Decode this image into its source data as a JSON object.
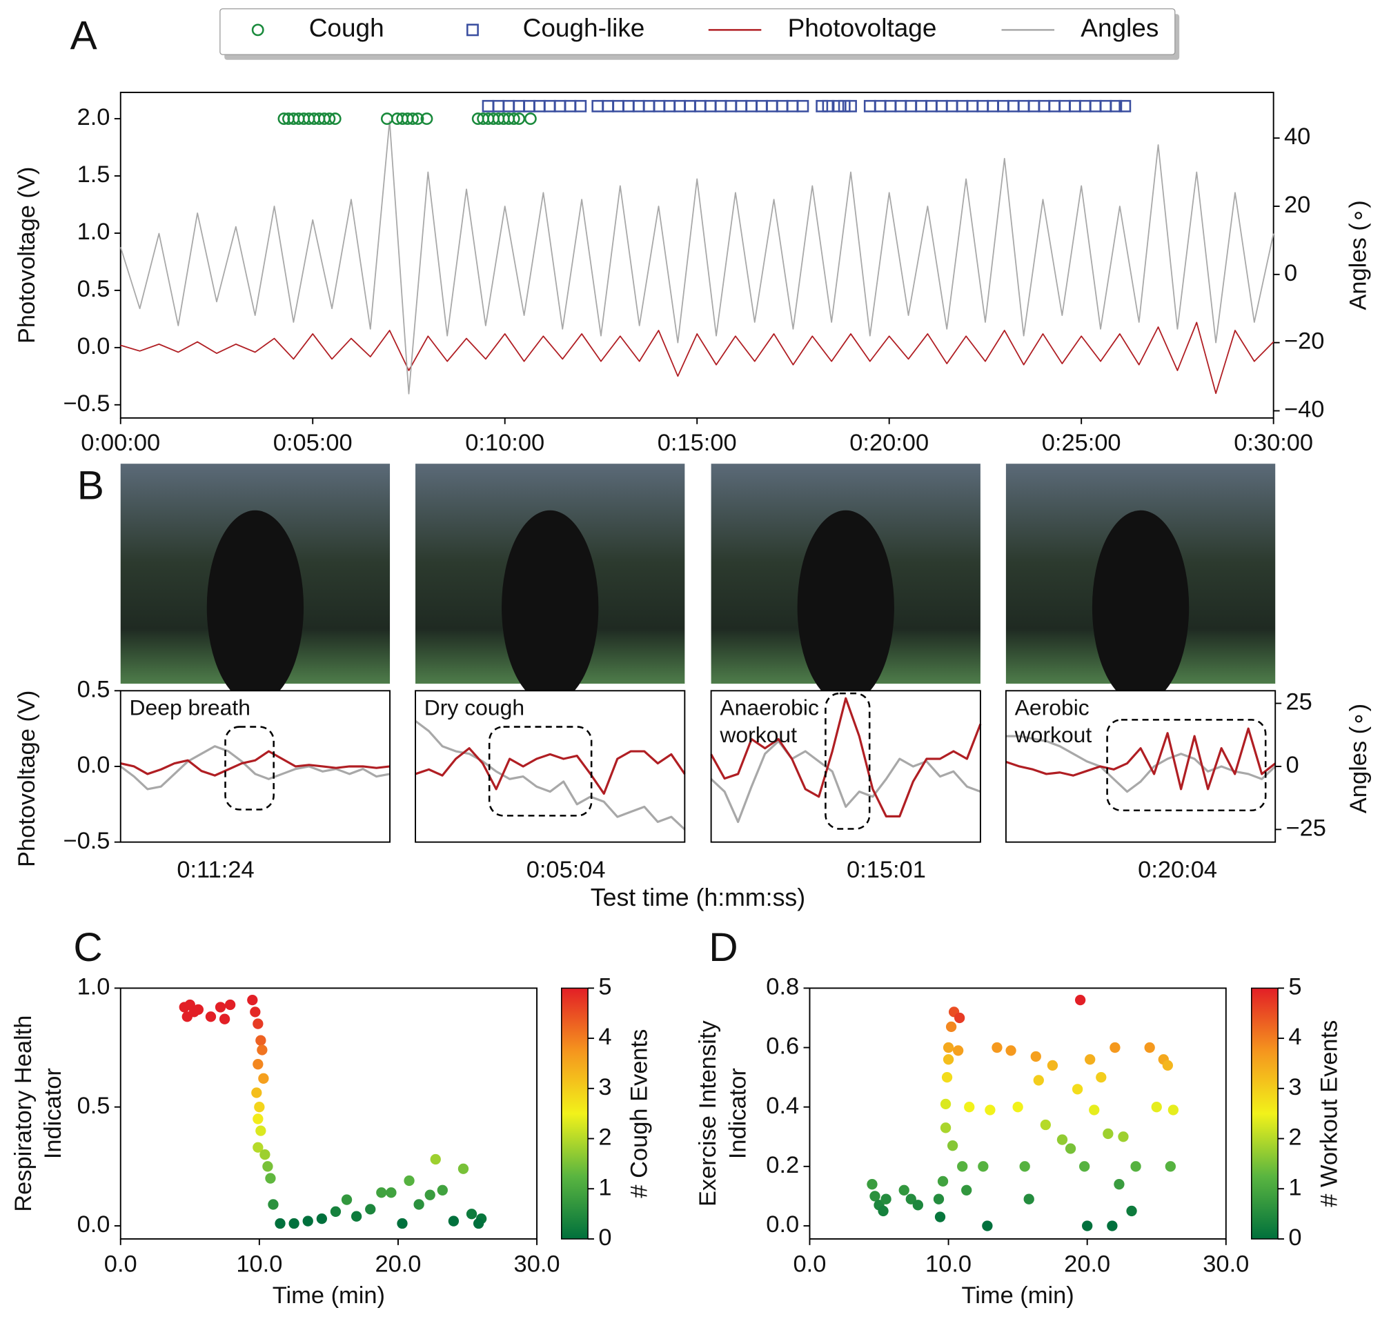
{
  "shared_xlabel": "Test time (h:mm:ss)",
  "chart_data": [
    {
      "type": "line",
      "panel": "A",
      "ylabel": "Photovoltage (V)",
      "y2label": "Angles (∘)",
      "xlim": [
        0,
        1800
      ],
      "xticks": [
        {
          "value": 0,
          "label": "0:00:00"
        },
        {
          "value": 300,
          "label": "0:05:00"
        },
        {
          "value": 600,
          "label": "0:10:00"
        },
        {
          "value": 900,
          "label": "0:15:00"
        },
        {
          "value": 1200,
          "label": "0:20:00"
        },
        {
          "value": 1500,
          "label": "0:25:00"
        },
        {
          "value": 1800,
          "label": "0:30:00"
        }
      ],
      "ylim": [
        -0.615,
        2.23
      ],
      "yticks": [
        {
          "value": -0.5,
          "label": "−0.5"
        },
        {
          "value": 0,
          "label": "0.0"
        },
        {
          "value": 0.5,
          "label": "0.5"
        },
        {
          "value": 1,
          "label": "1.0"
        },
        {
          "value": 1.5,
          "label": "1.5"
        },
        {
          "value": 2,
          "label": "2.0"
        }
      ],
      "y2lim": [
        -42.1,
        53.4
      ],
      "y2ticks": [
        {
          "value": -40,
          "label": "−40"
        },
        {
          "value": -20,
          "label": "−20"
        },
        0,
        20,
        40
      ],
      "x": [
        0,
        30,
        60,
        90,
        120,
        150,
        180,
        210,
        240,
        270,
        300,
        330,
        360,
        390,
        420,
        450,
        480,
        510,
        540,
        570,
        600,
        630,
        660,
        690,
        720,
        750,
        780,
        810,
        840,
        870,
        900,
        930,
        960,
        990,
        1020,
        1050,
        1080,
        1110,
        1140,
        1170,
        1200,
        1230,
        1260,
        1290,
        1320,
        1350,
        1380,
        1410,
        1440,
        1470,
        1500,
        1530,
        1560,
        1590,
        1620,
        1650,
        1680,
        1710,
        1740,
        1770,
        1800
      ],
      "series": [
        {
          "name": "Cough",
          "color": "#1a8a3c",
          "marker": "circle",
          "x": [
            255,
            262,
            270,
            278,
            286,
            294,
            302,
            310,
            318,
            326,
            335,
            416,
            432,
            440,
            448,
            456,
            464,
            478,
            558,
            566,
            574,
            582,
            590,
            598,
            606,
            614,
            622,
            640
          ],
          "values": [
            2,
            2,
            2,
            2,
            2,
            2,
            2,
            2,
            2,
            2,
            2,
            2,
            2,
            2,
            2,
            2,
            2,
            2,
            2,
            2,
            2,
            2,
            2,
            2,
            2,
            2,
            2,
            2
          ]
        },
        {
          "name": "Cough-like",
          "color": "#3b4fa0",
          "marker": "square",
          "x": [
            574,
            590,
            606,
            622,
            638,
            654,
            670,
            686,
            702,
            718,
            745,
            761,
            777,
            793,
            809,
            825,
            841,
            857,
            873,
            889,
            905,
            921,
            937,
            953,
            969,
            985,
            1001,
            1017,
            1033,
            1049,
            1065,
            1095,
            1105,
            1120,
            1130,
            1140,
            1170,
            1186,
            1202,
            1218,
            1234,
            1250,
            1266,
            1282,
            1298,
            1314,
            1330,
            1346,
            1362,
            1378,
            1394,
            1410,
            1426,
            1442,
            1458,
            1474,
            1490,
            1506,
            1522,
            1538,
            1554,
            1568
          ],
          "values": [
            2.11,
            2.11,
            2.11,
            2.11,
            2.11,
            2.11,
            2.11,
            2.11,
            2.11,
            2.11,
            2.11,
            2.11,
            2.11,
            2.11,
            2.11,
            2.11,
            2.11,
            2.11,
            2.11,
            2.11,
            2.11,
            2.11,
            2.11,
            2.11,
            2.11,
            2.11,
            2.11,
            2.11,
            2.11,
            2.11,
            2.11,
            2.11,
            2.11,
            2.11,
            2.11,
            2.11,
            2.11,
            2.11,
            2.11,
            2.11,
            2.11,
            2.11,
            2.11,
            2.11,
            2.11,
            2.11,
            2.11,
            2.11,
            2.11,
            2.11,
            2.11,
            2.11,
            2.11,
            2.11,
            2.11,
            2.11,
            2.11,
            2.11,
            2.11,
            2.11,
            2.11,
            2.11
          ]
        },
        {
          "name": "Photovoltage",
          "color": "#b01e23",
          "values": [
            0.02,
            -0.03,
            0.03,
            -0.04,
            0.05,
            -0.05,
            0.03,
            -0.04,
            0.08,
            -0.1,
            0.12,
            -0.1,
            0.08,
            -0.08,
            0.15,
            -0.2,
            0.1,
            -0.12,
            0.08,
            -0.1,
            0.12,
            -0.12,
            0.1,
            -0.1,
            0.12,
            -0.12,
            0.1,
            -0.12,
            0.15,
            -0.25,
            0.12,
            -0.15,
            0.1,
            -0.12,
            0.12,
            -0.15,
            0.1,
            -0.12,
            0.12,
            -0.12,
            0.1,
            -0.1,
            0.12,
            -0.14,
            0.1,
            -0.12,
            0.15,
            -0.15,
            0.12,
            -0.14,
            0.1,
            -0.12,
            0.12,
            -0.15,
            0.18,
            -0.2,
            0.22,
            -0.4,
            0.15,
            -0.12,
            0.05
          ]
        },
        {
          "name": "Angles",
          "color": "#a8a8a8",
          "axis": "y2",
          "values": [
            8,
            -10,
            12,
            -15,
            18,
            -8,
            14,
            -12,
            20,
            -14,
            16,
            -10,
            22,
            -16,
            45,
            -35,
            30,
            -18,
            25,
            -15,
            20,
            -12,
            24,
            -16,
            22,
            -18,
            26,
            -15,
            20,
            -20,
            28,
            -18,
            24,
            -14,
            22,
            -16,
            26,
            -14,
            30,
            -18,
            24,
            -12,
            20,
            -16,
            28,
            -14,
            34,
            -18,
            22,
            -12,
            26,
            -16,
            20,
            -14,
            38,
            -16,
            30,
            -20,
            24,
            -14,
            12
          ]
        }
      ]
    },
    {
      "type": "line",
      "panel": "B",
      "annotation": [
        "Deep breath"
      ],
      "xlabel": "0:11:24",
      "ylabel": "Photovoltage (V)",
      "ylim": [
        -0.5,
        0.5
      ],
      "y2lim": [
        -30,
        30
      ],
      "yticks": [
        {
          "value": -0.5,
          "label": "−0.5"
        },
        {
          "value": 0,
          "label": "0.0"
        },
        {
          "value": 0.5,
          "label": "0.5"
        }
      ],
      "series": [
        {
          "color": "#b01e23",
          "values": [
            0.02,
            0,
            -0.05,
            -0.02,
            0.02,
            0.04,
            -0.03,
            -0.06,
            -0.02,
            0.02,
            0.04,
            0.1,
            0.05,
            0,
            0.01,
            0,
            -0.01,
            0,
            0,
            -0.01,
            0
          ]
        },
        {
          "color": "#a8a8a8",
          "axis": "y2",
          "values": [
            0,
            -4,
            -9,
            -8,
            -3,
            2,
            5,
            8,
            6,
            2,
            -3,
            -5,
            -3,
            -1,
            0,
            -2,
            -1,
            -3,
            -1,
            -4,
            -3
          ]
        }
      ]
    },
    {
      "type": "line",
      "annotation": [
        "Dry cough"
      ],
      "xlabel": "0:05:04",
      "ylim": [
        -0.5,
        0.5
      ],
      "y2lim": [
        -30,
        30
      ],
      "series": [
        {
          "color": "#b01e23",
          "values": [
            -0.05,
            -0.02,
            -0.06,
            0.05,
            0.12,
            0.02,
            -0.15,
            0.05,
            0,
            0.05,
            0.08,
            0.05,
            0.07,
            -0.05,
            -0.18,
            0.05,
            0.1,
            0.1,
            0.02,
            0.08,
            -0.05
          ]
        },
        {
          "color": "#a8a8a8",
          "axis": "y2",
          "values": [
            18,
            14,
            8,
            6,
            5,
            2,
            -2,
            -5,
            -4,
            -8,
            -10,
            -6,
            -15,
            -12,
            -14,
            -20,
            -18,
            -16,
            -22,
            -20,
            -25
          ]
        }
      ]
    },
    {
      "type": "line",
      "annotation": [
        "Anaerobic",
        "workout"
      ],
      "xlabel": "0:15:01",
      "ylim": [
        -0.5,
        0.5
      ],
      "y2lim": [
        -30,
        30
      ],
      "series": [
        {
          "color": "#b01e23",
          "values": [
            0.08,
            -0.08,
            -0.05,
            0.18,
            0.12,
            0.18,
            0.05,
            -0.15,
            -0.2,
            0.1,
            0.45,
            0.2,
            -0.15,
            -0.33,
            -0.33,
            -0.1,
            0.05,
            0.05,
            0.1,
            0.05,
            0.28
          ]
        },
        {
          "color": "#a8a8a8",
          "axis": "y2",
          "values": [
            -5,
            -10,
            -22,
            -8,
            5,
            10,
            3,
            6,
            2,
            -2,
            -16,
            -10,
            -12,
            -5,
            3,
            0,
            2,
            -4,
            -2,
            -8,
            -10
          ]
        }
      ]
    },
    {
      "type": "line",
      "annotation": [
        "Aerobic",
        "workout"
      ],
      "xlabel": "0:20:04",
      "y2label": "Angles (∘)",
      "ylim": [
        -0.5,
        0.5
      ],
      "y2lim": [
        -30,
        30
      ],
      "y2ticks": [
        {
          "value": -25,
          "label": "−25"
        },
        0,
        25
      ],
      "series": [
        {
          "color": "#b01e23",
          "values": [
            0.03,
            0,
            -0.02,
            -0.05,
            -0.04,
            -0.06,
            -0.03,
            0,
            -0.02,
            0.02,
            0.12,
            -0.05,
            0.22,
            -0.15,
            0.2,
            -0.15,
            0.12,
            -0.05,
            0.25,
            -0.05,
            0.02
          ]
        },
        {
          "color": "#a8a8a8",
          "axis": "y2",
          "values": [
            12,
            12,
            11,
            10,
            8,
            5,
            2,
            0,
            -5,
            -10,
            -6,
            0,
            3,
            5,
            3,
            -2,
            0,
            -2,
            -3,
            -5,
            0
          ]
        }
      ]
    },
    {
      "type": "scatter",
      "panel": "C",
      "xlabel": "Time (min)",
      "ylabel": [
        "Respiratory Health",
        "Indicator"
      ],
      "clabel": "# Cough Events",
      "xlim": [
        0,
        30
      ],
      "xticks": [
        {
          "value": 0,
          "label": "0.0"
        },
        {
          "value": 10,
          "label": "10.0"
        },
        {
          "value": 20,
          "label": "20.0"
        },
        {
          "value": 30,
          "label": "30.0"
        }
      ],
      "ylim": [
        -0.055,
        1.0
      ],
      "yticks": [
        {
          "value": 0,
          "label": "0.0"
        },
        {
          "value": 0.5,
          "label": "0.5"
        },
        {
          "value": 1,
          "label": "1.0"
        }
      ],
      "clim": [
        0,
        5
      ],
      "cticks": [
        0,
        1,
        2,
        3,
        4,
        5
      ],
      "colormap": [
        "#00703c",
        "#5ab540",
        "#f2f21a",
        "#f5951e",
        "#e21f26"
      ],
      "x": [
        4.6,
        4.8,
        5.0,
        5.3,
        5.6,
        6.5,
        7.2,
        7.5,
        7.9,
        9.5,
        9.7,
        9.9,
        10.1,
        10.2,
        9.9,
        10.3,
        9.8,
        10.0,
        9.9,
        10.1,
        9.9,
        10.4,
        10.6,
        10.8,
        11.0,
        11.5,
        12.5,
        13.5,
        14.5,
        15.5,
        16.3,
        17,
        18,
        18.8,
        19.5,
        20.3,
        20.8,
        21.5,
        22.3,
        22.7,
        23.2,
        24,
        24.7,
        25.3,
        26,
        25.8
      ],
      "values": [
        0.92,
        0.88,
        0.93,
        0.9,
        0.91,
        0.88,
        0.92,
        0.87,
        0.93,
        0.95,
        0.9,
        0.85,
        0.78,
        0.74,
        0.68,
        0.62,
        0.56,
        0.5,
        0.45,
        0.4,
        0.33,
        0.3,
        0.25,
        0.2,
        0.09,
        0.01,
        0.01,
        0.02,
        0.03,
        0.06,
        0.11,
        0.04,
        0.07,
        0.14,
        0.14,
        0.01,
        0.19,
        0.09,
        0.13,
        0.28,
        0.15,
        0.02,
        0.24,
        0.05,
        0.03,
        0.01
      ],
      "color_values": [
        5,
        5,
        5,
        5,
        5,
        5,
        5,
        5,
        5,
        5,
        4.9,
        4.7,
        4.3,
        4.1,
        3.9,
        3.6,
        3.2,
        2.9,
        2.6,
        2.3,
        2,
        1.8,
        1.5,
        1.3,
        0.6,
        0,
        0,
        0,
        0,
        0.3,
        0.7,
        0.2,
        0.4,
        0.9,
        0.9,
        0,
        1.2,
        0.6,
        0.8,
        1.8,
        0.9,
        0,
        1.5,
        0.2,
        0.1,
        0
      ]
    },
    {
      "type": "scatter",
      "panel": "D",
      "xlabel": "Time (min)",
      "ylabel": [
        "Exercise Intensity",
        "Indicator"
      ],
      "clabel": "# Workout Events",
      "xlim": [
        0,
        30
      ],
      "xticks": [
        {
          "value": 0,
          "label": "0.0"
        },
        {
          "value": 10,
          "label": "10.0"
        },
        {
          "value": 20,
          "label": "20.0"
        },
        {
          "value": 30,
          "label": "30.0"
        }
      ],
      "ylim": [
        -0.044,
        0.8
      ],
      "yticks": [
        {
          "value": 0,
          "label": "0.0"
        },
        {
          "value": 0.2,
          "label": "0.2"
        },
        {
          "value": 0.4,
          "label": "0.4"
        },
        {
          "value": 0.6,
          "label": "0.6"
        },
        {
          "value": 0.8,
          "label": "0.8"
        }
      ],
      "clim": [
        0,
        5
      ],
      "cticks": [
        0,
        1,
        2,
        3,
        4,
        5
      ],
      "colormap": [
        "#00703c",
        "#5ab540",
        "#f2f21a",
        "#f5951e",
        "#e21f26"
      ],
      "x": [
        4.5,
        4.7,
        5.0,
        5.3,
        5.5,
        6.8,
        7.3,
        7.8,
        9.3,
        9.4,
        9.6,
        9.8,
        9.8,
        9.9,
        10.0,
        10.0,
        10.2,
        10.4,
        10.8,
        10.7,
        10.3,
        11,
        11.3,
        11.5,
        12.5,
        12.8,
        13,
        13.5,
        14.5,
        15,
        15.5,
        15.8,
        16.3,
        16.5,
        17,
        17.5,
        18.2,
        18.8,
        19.3,
        19.5,
        19.8,
        20,
        20.2,
        20.5,
        21,
        21.5,
        21.8,
        22,
        22.3,
        22.6,
        23.2,
        23.5,
        24.5,
        25,
        25.5,
        26,
        26.2,
        25.8
      ],
      "values": [
        0.14,
        0.1,
        0.07,
        0.05,
        0.09,
        0.12,
        0.09,
        0.07,
        0.09,
        0.03,
        0.15,
        0.33,
        0.41,
        0.5,
        0.56,
        0.6,
        0.67,
        0.72,
        0.7,
        0.59,
        0.27,
        0.2,
        0.12,
        0.4,
        0.2,
        0,
        0.39,
        0.6,
        0.59,
        0.4,
        0.2,
        0.09,
        0.57,
        0.49,
        0.34,
        0.54,
        0.29,
        0.26,
        0.46,
        0.76,
        0.2,
        0,
        0.56,
        0.39,
        0.5,
        0.31,
        0,
        0.6,
        0.14,
        0.3,
        0.05,
        0.2,
        0.6,
        0.4,
        0.56,
        0.2,
        0.39,
        0.54
      ],
      "color_values": [
        0.8,
        0.6,
        0.4,
        0.3,
        0.5,
        0.7,
        0.5,
        0.4,
        0.5,
        0.1,
        0.9,
        1.9,
        2.3,
        2.8,
        3.2,
        3.5,
        3.9,
        4.5,
        4.7,
        3.6,
        1.6,
        1.2,
        0.7,
        2.5,
        1.2,
        0,
        2.5,
        3.7,
        3.7,
        2.5,
        1.2,
        0.5,
        3.6,
        3,
        2,
        3.3,
        1.7,
        1.5,
        2.8,
        5,
        1.2,
        0,
        3.4,
        2.4,
        3,
        1.8,
        0,
        3.7,
        0.8,
        1.8,
        0.2,
        1.2,
        3.7,
        2.4,
        3.5,
        1.2,
        2.4,
        3.3
      ]
    }
  ]
}
